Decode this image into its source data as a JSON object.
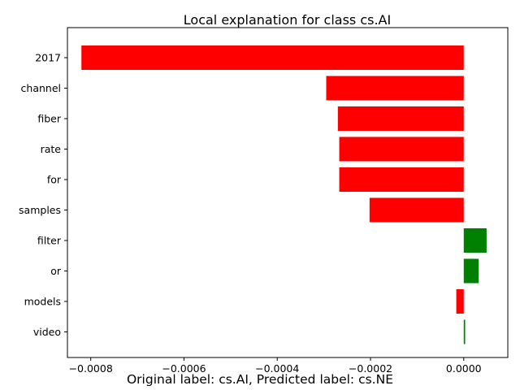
{
  "chart_data": {
    "type": "bar",
    "orientation": "horizontal",
    "title": "Local explanation for class cs.AI",
    "categories": [
      "2017",
      "channel",
      "fiber",
      "rate",
      "for",
      "samples",
      "filter",
      "or",
      "models",
      "video"
    ],
    "values": [
      -0.00082,
      -0.000295,
      -0.00027,
      -0.000267,
      -0.000267,
      -0.000202,
      4.9e-05,
      3.2e-05,
      -1.6e-05,
      3e-06
    ],
    "colors": {
      "positive": "#008000",
      "negative": "#ff0000"
    },
    "xlim": [
      -0.00085,
      9.45e-05
    ],
    "xticks": [
      -0.0008,
      -0.0006,
      -0.0004,
      -0.0002,
      0.0
    ],
    "xtick_labels": [
      "−0.0008",
      "−0.0006",
      "−0.0004",
      "−0.0002",
      "0.0000"
    ],
    "xlabel": "",
    "ylabel": "",
    "grid": false,
    "legend": "none"
  },
  "caption": "Original label: cs.AI, Predicted label: cs.NE"
}
